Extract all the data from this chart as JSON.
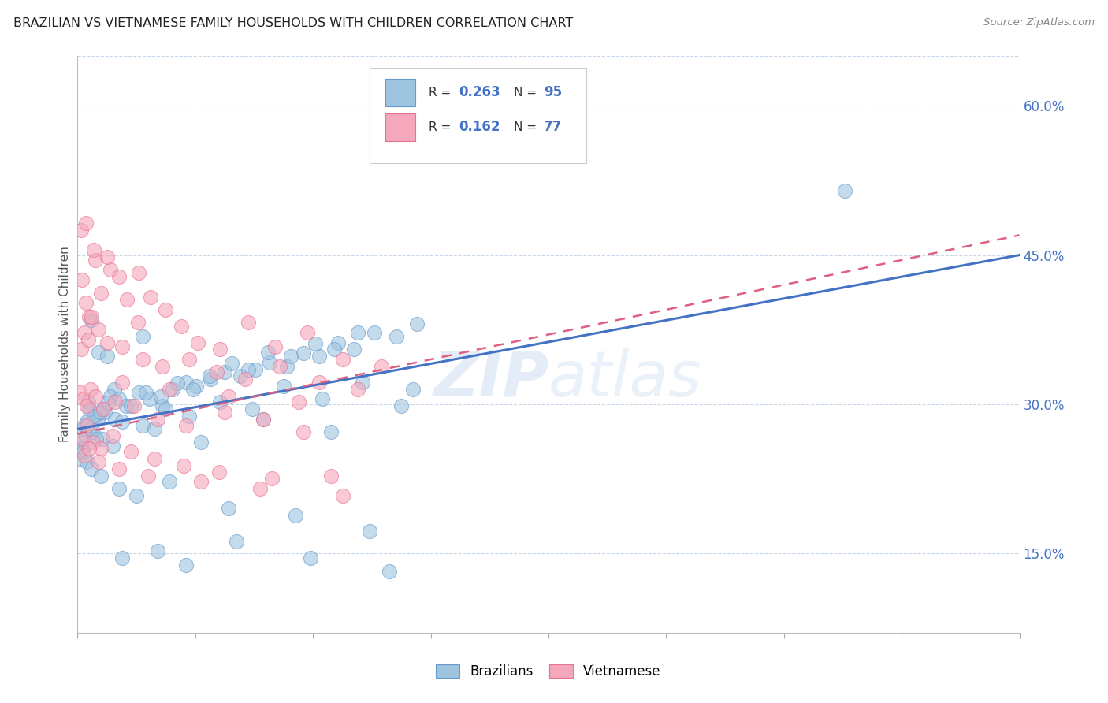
{
  "title": "BRAZILIAN VS VIETNAMESE FAMILY HOUSEHOLDS WITH CHILDREN CORRELATION CHART",
  "source": "Source: ZipAtlas.com",
  "ylabel": "Family Households with Children",
  "watermark": "ZIPatlas",
  "xlim": [
    0.0,
    80.0
  ],
  "ylim": [
    7.0,
    65.0
  ],
  "xticks": [
    0.0,
    10.0,
    20.0,
    30.0,
    40.0,
    50.0,
    60.0,
    70.0,
    80.0
  ],
  "yticks_right": [
    15.0,
    30.0,
    45.0,
    60.0
  ],
  "blue_scatter_x": [
    1.2,
    1.8,
    2.5,
    3.1,
    0.9,
    1.5,
    2.2,
    2.8,
    0.5,
    1.1,
    1.7,
    2.3,
    3.5,
    4.1,
    5.2,
    6.1,
    7.2,
    8.1,
    9.2,
    10.1,
    11.3,
    12.5,
    13.8,
    15.1,
    16.3,
    17.8,
    19.2,
    20.5,
    22.1,
    23.5,
    25.2,
    27.1,
    28.8,
    0.3,
    0.6,
    0.8,
    1.0,
    1.4,
    1.9,
    2.6,
    3.2,
    4.5,
    5.8,
    7.1,
    8.5,
    9.8,
    11.2,
    13.1,
    14.5,
    16.2,
    18.1,
    20.2,
    21.8,
    23.8,
    0.4,
    0.7,
    1.3,
    2.1,
    3.8,
    5.5,
    7.5,
    9.5,
    12.1,
    14.8,
    17.5,
    20.8,
    24.2,
    28.5,
    0.2,
    0.5,
    1.6,
    3.0,
    6.5,
    10.5,
    15.8,
    21.5,
    27.5,
    3.5,
    5.0,
    7.8,
    12.8,
    18.5,
    24.8,
    65.2,
    0.8,
    1.2,
    2.0,
    3.8,
    6.8,
    9.2,
    13.5,
    19.8,
    26.5,
    5.5
  ],
  "blue_scatter_y": [
    38.5,
    35.2,
    34.8,
    31.5,
    30.2,
    28.8,
    29.5,
    30.8,
    27.5,
    27.2,
    28.5,
    29.2,
    30.5,
    29.8,
    31.2,
    30.5,
    29.8,
    31.5,
    32.2,
    31.8,
    32.5,
    33.2,
    32.8,
    33.5,
    34.2,
    33.8,
    35.1,
    34.8,
    36.2,
    35.5,
    37.2,
    36.8,
    38.1,
    26.2,
    27.8,
    28.2,
    29.5,
    28.8,
    29.2,
    30.1,
    28.5,
    29.8,
    31.2,
    30.8,
    32.1,
    31.5,
    32.8,
    34.1,
    33.5,
    35.2,
    34.8,
    36.1,
    35.5,
    37.2,
    25.5,
    26.8,
    27.2,
    26.5,
    28.2,
    27.8,
    29.5,
    28.8,
    30.2,
    29.5,
    31.8,
    30.5,
    32.2,
    31.5,
    24.5,
    25.2,
    26.5,
    25.8,
    27.5,
    26.2,
    28.5,
    27.2,
    29.8,
    21.5,
    20.8,
    22.2,
    19.5,
    18.8,
    17.2,
    51.5,
    24.2,
    23.5,
    22.8,
    14.5,
    15.2,
    13.8,
    16.2,
    14.5,
    13.2,
    36.8
  ],
  "pink_scatter_x": [
    0.4,
    0.7,
    1.0,
    1.5,
    2.0,
    2.8,
    3.5,
    4.2,
    5.1,
    6.2,
    7.5,
    8.8,
    10.2,
    12.1,
    14.5,
    16.8,
    19.5,
    22.5,
    25.8,
    0.3,
    0.6,
    0.9,
    1.2,
    1.8,
    2.5,
    3.8,
    5.5,
    7.2,
    9.5,
    11.8,
    14.2,
    17.2,
    20.5,
    23.8,
    0.2,
    0.5,
    0.8,
    1.1,
    1.5,
    2.2,
    3.2,
    4.8,
    6.8,
    9.2,
    12.5,
    15.8,
    19.2,
    0.4,
    0.8,
    1.3,
    2.0,
    3.0,
    4.5,
    6.5,
    9.0,
    12.0,
    16.5,
    21.5,
    0.6,
    1.0,
    1.8,
    3.5,
    6.0,
    10.5,
    15.5,
    22.5,
    3.8,
    7.8,
    12.8,
    18.8,
    0.3,
    0.7,
    1.4,
    2.5,
    5.2
  ],
  "pink_scatter_y": [
    42.5,
    40.2,
    38.8,
    44.5,
    41.2,
    43.5,
    42.8,
    40.5,
    38.2,
    40.8,
    39.5,
    37.8,
    36.2,
    35.5,
    38.2,
    35.8,
    37.2,
    34.5,
    33.8,
    35.5,
    37.2,
    36.5,
    38.8,
    37.5,
    36.2,
    35.8,
    34.5,
    33.8,
    34.5,
    33.2,
    32.5,
    33.8,
    32.2,
    31.5,
    31.2,
    30.5,
    29.8,
    31.5,
    30.8,
    29.5,
    30.2,
    29.8,
    28.5,
    27.8,
    29.2,
    28.5,
    27.2,
    26.5,
    27.8,
    26.2,
    25.5,
    26.8,
    25.2,
    24.5,
    23.8,
    23.2,
    22.5,
    22.8,
    24.8,
    25.5,
    24.2,
    23.5,
    22.8,
    22.2,
    21.5,
    20.8,
    32.2,
    31.5,
    30.8,
    30.2,
    47.5,
    48.2,
    45.5,
    44.8,
    43.2
  ],
  "blue_color": "#9ec4e0",
  "pink_color": "#f5a8bb",
  "blue_edge_color": "#6699cc",
  "pink_edge_color": "#e87090",
  "blue_line_color": "#4472c4",
  "pink_line_color": "#e06080",
  "right_tick_color": "#4472c4",
  "grid_color": "#c8d8e8",
  "background_color": "#ffffff",
  "title_color": "#222222",
  "axis_label_color": "#555555",
  "blue_line_start_y": 27.5,
  "blue_line_end_y": 45.0,
  "pink_line_start_y": 27.0,
  "pink_line_end_y": 47.0
}
